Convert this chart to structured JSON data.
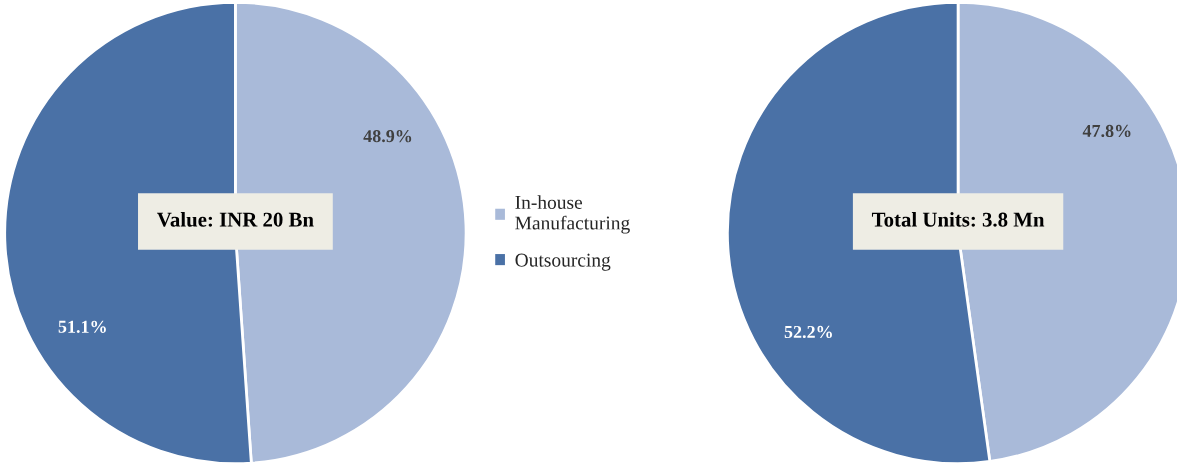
{
  "chart_data": [
    {
      "type": "pie",
      "categories": [
        "In-house\nManufacturing",
        "Outsourcing"
      ],
      "values": [
        48.9,
        51.1
      ],
      "colors": [
        "#a9bad9",
        "#4a71a6"
      ],
      "value_labels": [
        "48.9%",
        "51.1%"
      ],
      "annotations": [
        "Value: INR 20 Bn"
      ],
      "legend": "right"
    },
    {
      "type": "pie",
      "values": [
        47.8,
        52.2
      ],
      "colors": [
        "#a9bad9",
        "#4a71a6"
      ],
      "value_labels": [
        "47.8%",
        "52.2%"
      ],
      "annotations": [
        "Total Units: 3.8 Mn"
      ]
    }
  ]
}
